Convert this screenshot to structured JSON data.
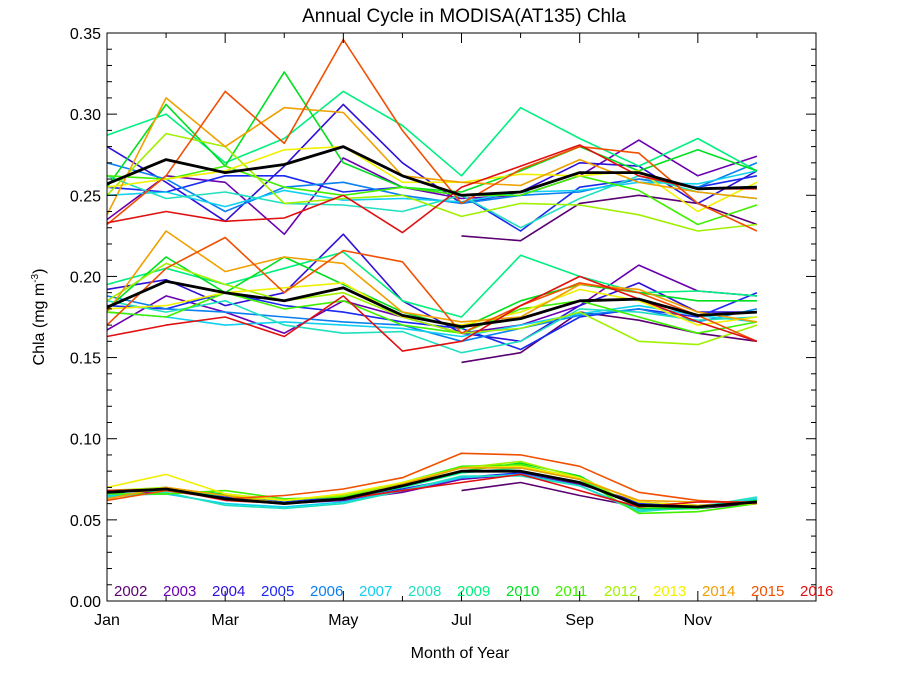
{
  "chart_data": {
    "type": "line",
    "title": "Annual Cycle in MODISA(AT135) Chla",
    "xlabel": "Month of Year",
    "ylabel_main": "Chla (mg m",
    "ylabel_sup": "-3",
    "ylabel_close": ")",
    "xlim": [
      1,
      13
    ],
    "ylim": [
      0,
      0.35
    ],
    "x_ticks": [
      {
        "value": 1,
        "label": "Jan"
      },
      {
        "value": 3,
        "label": "Mar"
      },
      {
        "value": 5,
        "label": "May"
      },
      {
        "value": 7,
        "label": "Jul"
      },
      {
        "value": 9,
        "label": "Sep"
      },
      {
        "value": 11,
        "label": "Nov"
      }
    ],
    "y_ticks": [
      {
        "value": 0.0,
        "label": "0.00"
      },
      {
        "value": 0.05,
        "label": "0.05"
      },
      {
        "value": 0.1,
        "label": "0.10"
      },
      {
        "value": 0.15,
        "label": "0.15"
      },
      {
        "value": 0.2,
        "label": "0.20"
      },
      {
        "value": 0.25,
        "label": "0.25"
      },
      {
        "value": 0.3,
        "label": "0.30"
      },
      {
        "value": 0.35,
        "label": "0.35"
      }
    ],
    "x": [
      1,
      2,
      3,
      4,
      5,
      6,
      7,
      8,
      9,
      10,
      11,
      12
    ],
    "legend_position": "bottom",
    "series": [
      {
        "name": "2002",
        "color": "#5a0070",
        "groups": [
          [
            null,
            null,
            null,
            null,
            null,
            null,
            0.225,
            0.222,
            0.245,
            0.25,
            0.245,
            0.232
          ],
          [
            null,
            null,
            null,
            null,
            null,
            null,
            0.147,
            0.153,
            0.178,
            0.173,
            0.165,
            0.16
          ],
          [
            null,
            null,
            null,
            null,
            null,
            null,
            0.068,
            0.073,
            0.065,
            0.058,
            0.057,
            0.06
          ]
        ]
      },
      {
        "name": "2003",
        "color": "#6a00b0",
        "groups": [
          [
            0.235,
            0.262,
            0.258,
            0.226,
            0.273,
            0.255,
            0.248,
            0.25,
            0.262,
            0.284,
            0.262,
            0.274
          ],
          [
            0.167,
            0.188,
            0.178,
            0.165,
            0.185,
            0.175,
            0.165,
            0.17,
            0.182,
            0.207,
            0.191,
            0.188
          ],
          [
            0.064,
            0.068,
            0.063,
            0.06,
            0.062,
            0.067,
            0.075,
            0.078,
            0.072,
            0.061,
            0.059,
            0.061
          ]
        ]
      },
      {
        "name": "2004",
        "color": "#3010d8",
        "groups": [
          [
            0.28,
            0.258,
            0.234,
            0.268,
            0.306,
            0.27,
            0.245,
            0.252,
            0.27,
            0.268,
            0.245,
            0.265
          ],
          [
            0.192,
            0.198,
            0.182,
            0.19,
            0.226,
            0.185,
            0.165,
            0.16,
            0.182,
            0.196,
            0.178,
            0.178
          ]
        ]
      },
      {
        "name": "2005",
        "color": "#1a2af0",
        "groups": [
          [
            0.255,
            0.252,
            0.262,
            0.262,
            0.252,
            0.255,
            0.25,
            0.228,
            0.255,
            0.26,
            0.255,
            0.262
          ],
          [
            0.182,
            0.18,
            0.19,
            0.182,
            0.178,
            0.172,
            0.168,
            0.155,
            0.175,
            0.18,
            0.175,
            0.19
          ],
          [
            0.066,
            0.07,
            0.064,
            0.061,
            0.064,
            0.069,
            0.076,
            0.079,
            0.073,
            0.06,
            0.058,
            0.062
          ]
        ]
      },
      {
        "name": "2006",
        "color": "#0a80f0",
        "groups": [
          [
            0.27,
            0.26,
            0.24,
            0.255,
            0.258,
            0.25,
            0.245,
            0.25,
            0.252,
            0.26,
            0.255,
            0.27
          ],
          [
            0.188,
            0.18,
            0.178,
            0.175,
            0.172,
            0.17,
            0.16,
            0.168,
            0.176,
            0.18,
            0.172,
            0.18
          ]
        ]
      },
      {
        "name": "2007",
        "color": "#10d0f0",
        "groups": [
          [
            0.25,
            0.252,
            0.243,
            0.253,
            0.247,
            0.248,
            0.246,
            0.252,
            0.253,
            0.258,
            0.257,
            0.265
          ],
          [
            0.178,
            0.175,
            0.17,
            0.172,
            0.17,
            0.168,
            0.163,
            0.17,
            0.177,
            0.182,
            0.176,
            0.172
          ],
          [
            0.065,
            0.066,
            0.06,
            0.058,
            0.061,
            0.068,
            0.076,
            0.078,
            0.071,
            0.056,
            0.057,
            0.063
          ]
        ]
      },
      {
        "name": "2008",
        "color": "#20e0c0",
        "groups": [
          [
            0.262,
            0.248,
            0.252,
            0.245,
            0.244,
            0.24,
            0.25,
            0.23,
            0.248,
            0.262,
            0.252,
            0.248
          ],
          [
            0.185,
            0.178,
            0.185,
            0.17,
            0.165,
            0.166,
            0.153,
            0.16,
            0.18,
            0.178,
            0.173,
            0.175
          ],
          [
            0.064,
            0.067,
            0.059,
            0.057,
            0.06,
            0.068,
            0.077,
            0.077,
            0.071,
            0.055,
            0.058,
            0.064
          ]
        ]
      },
      {
        "name": "2009",
        "color": "#00f080",
        "groups": [
          [
            0.287,
            0.3,
            0.27,
            0.285,
            0.314,
            0.293,
            0.262,
            0.304,
            0.285,
            0.268,
            0.285,
            0.265
          ],
          [
            0.195,
            0.205,
            0.195,
            0.205,
            0.215,
            0.185,
            0.175,
            0.213,
            0.2,
            0.19,
            0.191,
            0.188
          ],
          [
            0.067,
            0.068,
            0.065,
            0.06,
            0.063,
            0.07,
            0.079,
            0.082,
            0.075,
            0.058,
            0.058,
            0.062
          ]
        ]
      },
      {
        "name": "2010",
        "color": "#00e020",
        "groups": [
          [
            0.255,
            0.306,
            0.268,
            0.326,
            0.27,
            0.255,
            0.252,
            0.265,
            0.28,
            0.265,
            0.278,
            0.265
          ],
          [
            0.18,
            0.212,
            0.19,
            0.212,
            0.195,
            0.178,
            0.168,
            0.185,
            0.195,
            0.19,
            0.185,
            0.185
          ],
          [
            0.068,
            0.069,
            0.066,
            0.062,
            0.065,
            0.072,
            0.08,
            0.085,
            0.077,
            0.057,
            0.057,
            0.062
          ]
        ]
      },
      {
        "name": "2011",
        "color": "#40f000",
        "groups": [
          [
            0.262,
            0.26,
            0.268,
            0.255,
            0.25,
            0.255,
            0.25,
            0.25,
            0.262,
            0.253,
            0.232,
            0.244
          ],
          [
            0.178,
            0.175,
            0.19,
            0.18,
            0.185,
            0.17,
            0.165,
            0.18,
            0.185,
            0.175,
            0.165,
            0.172
          ],
          [
            0.066,
            0.066,
            0.068,
            0.063,
            0.064,
            0.073,
            0.083,
            0.084,
            0.075,
            0.054,
            0.055,
            0.06
          ]
        ]
      },
      {
        "name": "2012",
        "color": "#a0f000",
        "groups": [
          [
            0.25,
            0.288,
            0.28,
            0.245,
            0.248,
            0.25,
            0.237,
            0.245,
            0.244,
            0.238,
            0.228,
            0.232
          ],
          [
            0.185,
            0.208,
            0.195,
            0.185,
            0.19,
            0.175,
            0.165,
            0.168,
            0.178,
            0.16,
            0.158,
            0.17
          ],
          [
            0.068,
            0.07,
            0.065,
            0.062,
            0.065,
            0.072,
            0.082,
            0.086,
            0.076,
            0.058,
            0.058,
            0.061
          ]
        ]
      },
      {
        "name": "2013",
        "color": "#f0f000",
        "groups": [
          [
            0.255,
            0.26,
            0.265,
            0.278,
            0.28,
            0.258,
            0.258,
            0.263,
            0.262,
            0.265,
            0.24,
            0.258
          ],
          [
            0.18,
            0.182,
            0.19,
            0.193,
            0.196,
            0.175,
            0.17,
            0.178,
            0.192,
            0.185,
            0.17,
            0.175
          ],
          [
            0.07,
            0.078,
            0.066,
            0.062,
            0.066,
            0.073,
            0.082,
            0.083,
            0.076,
            0.061,
            0.059,
            0.06
          ]
        ]
      },
      {
        "name": "2014",
        "color": "#f0a000",
        "groups": [
          [
            0.238,
            0.31,
            0.28,
            0.304,
            0.301,
            0.262,
            0.258,
            0.256,
            0.272,
            0.258,
            0.252,
            0.248
          ],
          [
            0.178,
            0.228,
            0.203,
            0.212,
            0.208,
            0.178,
            0.172,
            0.175,
            0.195,
            0.192,
            0.178,
            0.172
          ],
          [
            0.063,
            0.07,
            0.065,
            0.06,
            0.063,
            0.072,
            0.082,
            0.082,
            0.075,
            0.062,
            0.061,
            0.061
          ]
        ]
      },
      {
        "name": "2015",
        "color": "#f05000",
        "groups": [
          [
            0.232,
            0.262,
            0.314,
            0.282,
            0.346,
            0.29,
            0.245,
            0.266,
            0.28,
            0.276,
            0.245,
            0.228
          ],
          [
            0.17,
            0.205,
            0.224,
            0.19,
            0.216,
            0.209,
            0.165,
            0.182,
            0.196,
            0.19,
            0.176,
            0.16
          ],
          [
            0.062,
            0.068,
            0.063,
            0.065,
            0.069,
            0.076,
            0.091,
            0.09,
            0.083,
            0.067,
            0.062,
            0.06
          ]
        ]
      },
      {
        "name": "2016",
        "color": "#e01010",
        "groups": [
          [
            0.233,
            0.24,
            0.234,
            0.236,
            0.25,
            0.227,
            0.255,
            0.268,
            0.281,
            0.262,
            0.254,
            0.254
          ],
          [
            0.163,
            0.17,
            0.175,
            0.163,
            0.188,
            0.154,
            0.16,
            0.182,
            0.2,
            0.186,
            0.172,
            0.16
          ],
          [
            0.068,
            0.069,
            0.062,
            0.06,
            0.063,
            0.068,
            0.073,
            0.078,
            0.068,
            0.058,
            0.061,
            0.061
          ]
        ]
      }
    ],
    "mean_series": {
      "color": "#000000",
      "groups": [
        [
          0.257,
          0.272,
          0.264,
          0.269,
          0.28,
          0.262,
          0.25,
          0.252,
          0.264,
          0.264,
          0.254,
          0.255
        ],
        [
          0.181,
          0.197,
          0.19,
          0.185,
          0.193,
          0.176,
          0.169,
          0.174,
          0.185,
          0.186,
          0.176,
          0.178
        ],
        [
          0.067,
          0.069,
          0.063,
          0.06,
          0.063,
          0.071,
          0.08,
          0.08,
          0.073,
          0.059,
          0.058,
          0.061
        ]
      ]
    }
  }
}
